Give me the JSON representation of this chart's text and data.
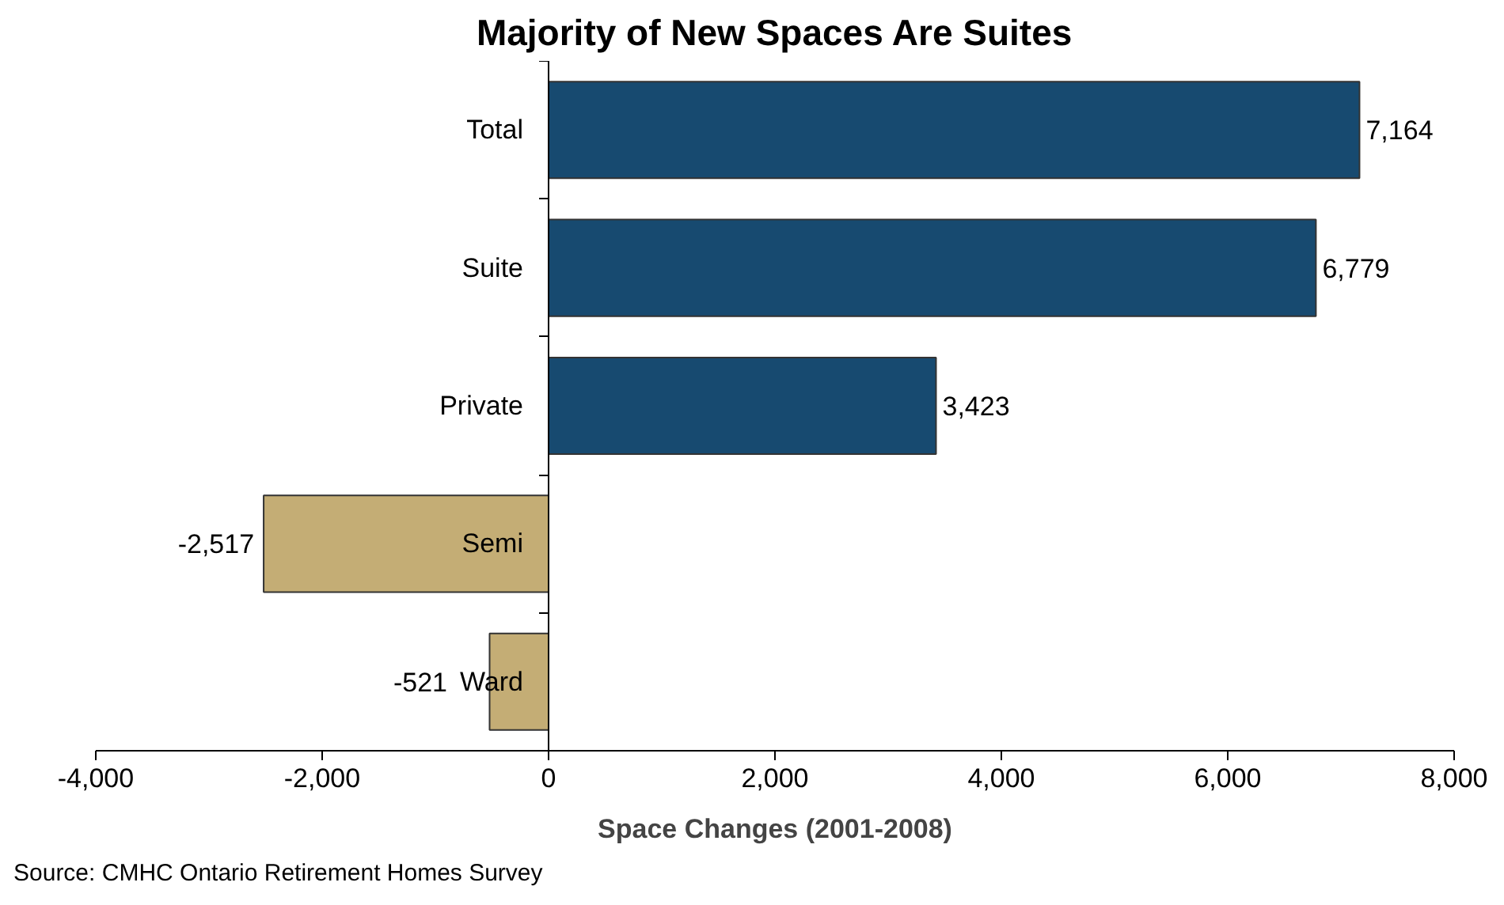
{
  "chart_data": {
    "type": "bar",
    "orientation": "horizontal",
    "title": "Majority of New Spaces Are Suites",
    "xlabel": "Space Changes (2001-2008)",
    "categories": [
      "Total",
      "Suite",
      "Private",
      "Semi",
      "Ward"
    ],
    "values": [
      7164,
      6779,
      3423,
      -2517,
      -521
    ],
    "colors": [
      "#174a70",
      "#174a70",
      "#174a70",
      "#c4ad75",
      "#c4ad75"
    ],
    "value_labels": [
      "7,164",
      "6,779",
      "3,423",
      "-2,517",
      "-521"
    ],
    "xlim": [
      -4000,
      8000
    ],
    "xticks": [
      {
        "value": -4000,
        "label": "-4,000"
      },
      {
        "value": -2000,
        "label": "-2,000"
      },
      0,
      {
        "value": 2000,
        "label": "2,000"
      },
      {
        "value": 4000,
        "label": "4,000"
      },
      {
        "value": 6000,
        "label": "6,000"
      },
      {
        "value": 8000,
        "label": "8,000"
      }
    ],
    "grid": false,
    "annotations": [
      "Source: CMHC Ontario Retirement Homes Survey"
    ]
  }
}
